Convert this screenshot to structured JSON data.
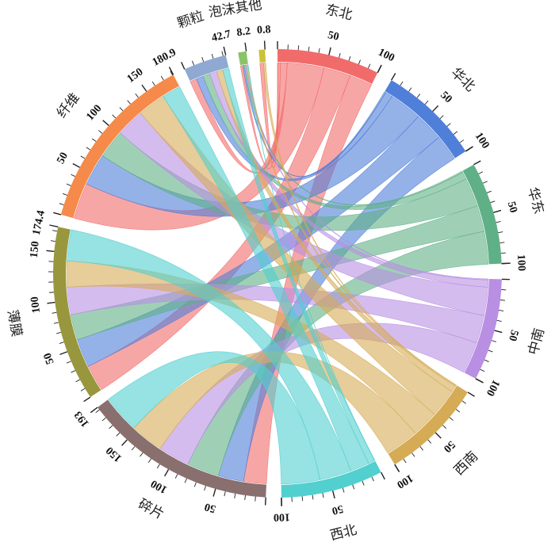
{
  "chart_data": {
    "type": "chord",
    "title": "",
    "regions": [
      {
        "name": "东北",
        "total": 100,
        "color": "#f26b6b"
      },
      {
        "name": "华北",
        "total": 100,
        "color": "#4f7fd9"
      },
      {
        "name": "华东",
        "total": 100,
        "color": "#5fb086"
      },
      {
        "name": "中南",
        "total": 100,
        "color": "#b98fe3"
      },
      {
        "name": "西南",
        "total": 100,
        "color": "#d6ab55"
      },
      {
        "name": "西北",
        "total": 100,
        "color": "#52cfcf"
      }
    ],
    "forms": [
      {
        "name": "碎片",
        "total": 193,
        "color": "#8a6f6f"
      },
      {
        "name": "薄膜",
        "total": 174.4,
        "color": "#99973e"
      },
      {
        "name": "纤维",
        "total": 180.9,
        "color": "#f58a4a"
      },
      {
        "name": "颗粒",
        "total": 42.7,
        "color": "#8fa9d2"
      },
      {
        "name": "泡沫其他",
        "total": 8.2,
        "color": "#8ac468"
      },
      {
        "name": "",
        "total": 0.8,
        "color": "#c9c23a"
      }
    ],
    "flows": [
      {
        "region": "东北",
        "values": {
          "碎片": 24.0,
          "薄膜": 28.0,
          "纤维": 38.0,
          "颗粒": 7.0,
          "泡沫其他": 2.5,
          "": 0.5
        }
      },
      {
        "region": "华北",
        "values": {
          "碎片": 27.0,
          "薄膜": 30.0,
          "纤维": 34.0,
          "颗粒": 7.5,
          "泡沫其他": 1.5,
          "": 0.0
        }
      },
      {
        "region": "华东",
        "values": {
          "碎片": 34.0,
          "薄膜": 27.0,
          "纤维": 30.0,
          "颗粒": 7.5,
          "泡沫其他": 1.5,
          "": 0.0
        }
      },
      {
        "region": "中南",
        "values": {
          "碎片": 33.0,
          "薄膜": 29.0,
          "纤维": 29.5,
          "颗粒": 7.5,
          "泡沫其他": 1.0,
          "": 0.0
        }
      },
      {
        "region": "西南",
        "values": {
          "碎片": 35.0,
          "薄膜": 27.4,
          "纤维": 29.5,
          "颗粒": 6.5,
          "泡沫其他": 1.3,
          "": 0.3
        }
      },
      {
        "region": "西北",
        "values": {
          "碎片": 40.0,
          "薄膜": 33.0,
          "纤维": 19.9,
          "颗粒": 6.7,
          "泡沫其他": 0.4,
          "": 0.0
        }
      }
    ],
    "region_tick_step": 50,
    "form_tick_step": 50,
    "show_total_at_end": true,
    "legend": "none",
    "grid": false
  }
}
